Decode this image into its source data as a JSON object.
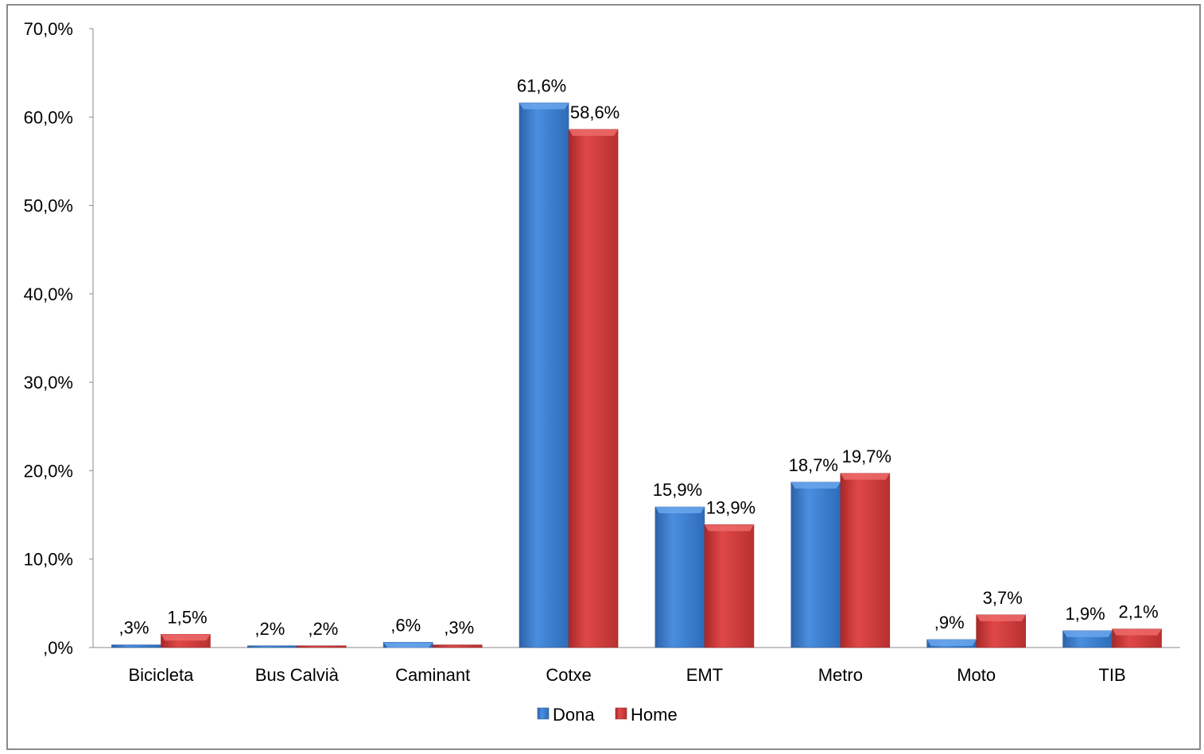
{
  "chart_data": {
    "type": "bar",
    "categories": [
      "Bicicleta",
      "Bus Calvià",
      "Caminant",
      "Cotxe",
      "EMT",
      "Metro",
      "Moto",
      "TIB"
    ],
    "series": [
      {
        "name": "Dona",
        "values": [
          0.3,
          0.2,
          0.6,
          61.6,
          15.9,
          18.7,
          0.9,
          1.9
        ],
        "labels": [
          ",3%",
          ",2%",
          ",6%",
          "61,6%",
          "15,9%",
          "18,7%",
          ",9%",
          "1,9%"
        ],
        "color": "#3A7FD0"
      },
      {
        "name": "Home",
        "values": [
          1.5,
          0.2,
          0.3,
          58.6,
          13.9,
          19.7,
          3.7,
          2.1
        ],
        "labels": [
          "1,5%",
          ",2%",
          ",3%",
          "58,6%",
          "13,9%",
          "19,7%",
          "3,7%",
          "2,1%"
        ],
        "color": "#D53B3B"
      }
    ],
    "ylim": [
      0,
      70
    ],
    "yticks": [
      0,
      10,
      20,
      30,
      40,
      50,
      60,
      70
    ],
    "ytick_labels": [
      ",0%",
      "10,0%",
      "20,0%",
      "30,0%",
      "40,0%",
      "50,0%",
      "60,0%",
      "70,0%"
    ],
    "legend_position": "bottom",
    "grid": false,
    "title": "",
    "xlabel": "",
    "ylabel": ""
  }
}
